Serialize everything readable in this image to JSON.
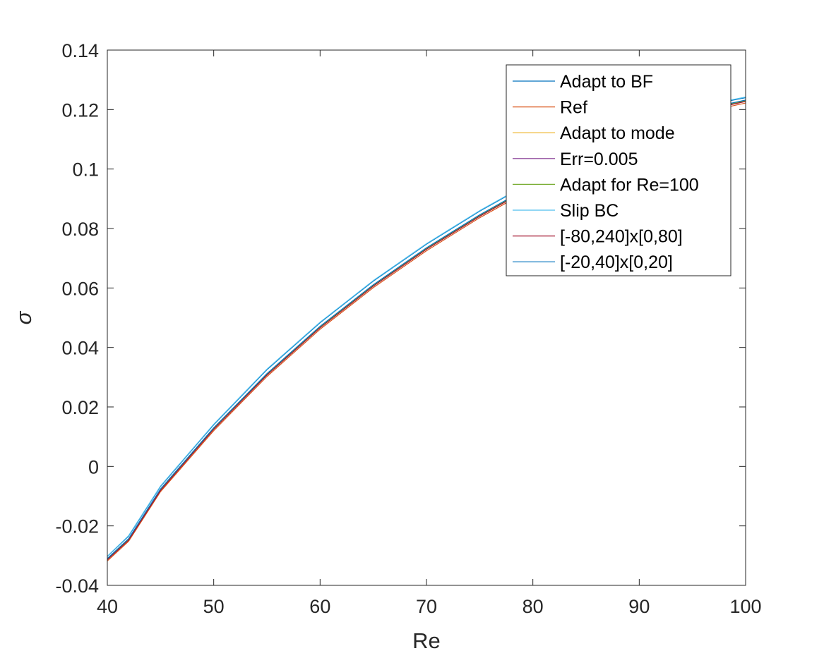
{
  "chart_data": {
    "type": "line",
    "title": "",
    "xlabel": "Re",
    "ylabel": "σ",
    "xlim": [
      40,
      100
    ],
    "ylim": [
      -0.04,
      0.14
    ],
    "xticks": [
      40,
      50,
      60,
      70,
      80,
      90,
      100
    ],
    "xtick_labels": [
      "40",
      "50",
      "60",
      "70",
      "80",
      "90",
      "100"
    ],
    "yticks": [
      -0.04,
      -0.02,
      0,
      0.02,
      0.04,
      0.06,
      0.08,
      0.1,
      0.12,
      0.14
    ],
    "ytick_labels": [
      "-0.04",
      "-0.02",
      "0",
      "0.02",
      "0.04",
      "0.06",
      "0.08",
      "0.1",
      "0.12",
      "0.14"
    ],
    "grid": false,
    "box": true,
    "legend_position": "top-right",
    "x": [
      40,
      42,
      45,
      50,
      55,
      60,
      65,
      70,
      75,
      80,
      85,
      90,
      95,
      100
    ],
    "series": [
      {
        "name": "Adapt to BF",
        "color": "#0072BD",
        "values": [
          -0.0303,
          -0.0235,
          -0.0068,
          0.014,
          0.0325,
          0.0483,
          0.0623,
          0.0747,
          0.0858,
          0.0958,
          0.1049,
          0.1131,
          0.1205,
          0.124
        ]
      },
      {
        "name": "Ref",
        "color": "#D95319",
        "values": [
          -0.0318,
          -0.0252,
          -0.0085,
          0.012,
          0.0302,
          0.0461,
          0.0601,
          0.0725,
          0.0836,
          0.0936,
          0.1027,
          0.1109,
          0.1183,
          0.1222
        ]
      },
      {
        "name": "Adapt to mode",
        "color": "#EDB120",
        "values": [
          -0.0313,
          -0.0247,
          -0.008,
          0.0126,
          0.0308,
          0.0467,
          0.0607,
          0.0731,
          0.0842,
          0.0942,
          0.1033,
          0.1115,
          0.1189,
          0.1228
        ]
      },
      {
        "name": "Err=0.005",
        "color": "#7E2F8E",
        "values": [
          -0.0313,
          -0.0246,
          -0.0079,
          0.0127,
          0.0309,
          0.0468,
          0.0608,
          0.0732,
          0.0843,
          0.0943,
          0.1034,
          0.1116,
          0.119,
          0.1229
        ]
      },
      {
        "name": "Adapt for Re=100",
        "color": "#77AC30",
        "values": [
          -0.0312,
          -0.0245,
          -0.0078,
          0.0128,
          0.031,
          0.0469,
          0.0609,
          0.0733,
          0.0844,
          0.0944,
          0.1035,
          0.1117,
          0.1191,
          0.123
        ]
      },
      {
        "name": "Slip BC",
        "color": "#4DBEEE",
        "values": [
          -0.0302,
          -0.0233,
          -0.0066,
          0.0142,
          0.0327,
          0.0485,
          0.0625,
          0.0749,
          0.086,
          0.096,
          0.1051,
          0.1133,
          0.1207,
          0.1242
        ]
      },
      {
        "name": "[-80,240]x[0,80]",
        "color": "#A2142F",
        "values": [
          -0.0314,
          -0.0248,
          -0.0081,
          0.0125,
          0.0307,
          0.0466,
          0.0606,
          0.073,
          0.0841,
          0.0941,
          0.1032,
          0.1114,
          0.1188,
          0.1227
        ]
      },
      {
        "name": "[-20,40]x[0,20]",
        "color": "#0072BD",
        "values": [
          -0.031,
          -0.0243,
          -0.0076,
          0.013,
          0.0312,
          0.0471,
          0.0611,
          0.0735,
          0.0846,
          0.0946,
          0.1037,
          0.1119,
          0.1193,
          0.1232
        ]
      }
    ]
  }
}
